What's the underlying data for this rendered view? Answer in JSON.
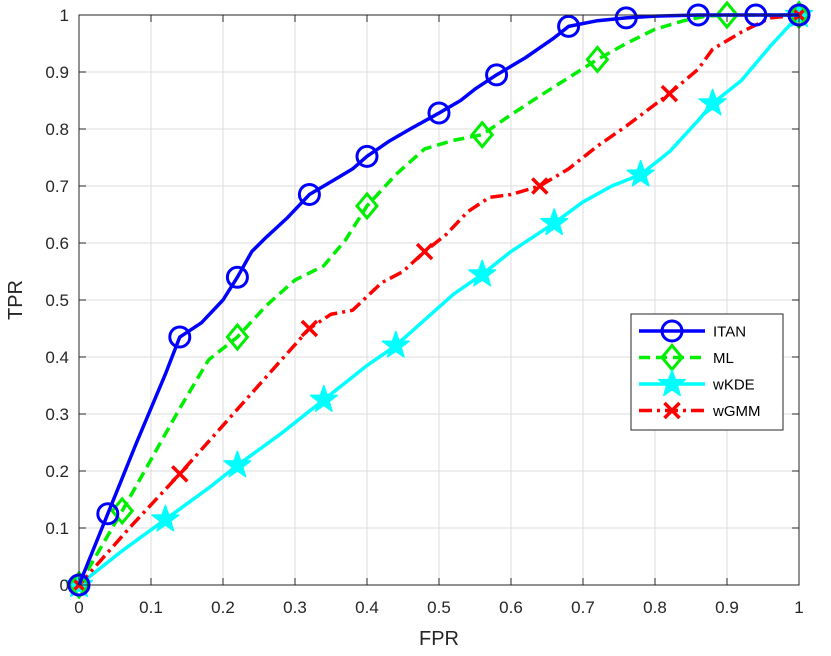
{
  "chart_data": {
    "type": "line",
    "xlabel": "FPR",
    "ylabel": "TPR",
    "xlim": [
      0,
      1
    ],
    "ylim": [
      0,
      1
    ],
    "grid": true,
    "legend_position": "right-middle",
    "x_ticks": [
      "0",
      "0.1",
      "0.2",
      "0.3",
      "0.4",
      "0.5",
      "0.6",
      "0.7",
      "0.8",
      "0.9",
      "1"
    ],
    "y_ticks": [
      "0",
      "0.1",
      "0.2",
      "0.3",
      "0.4",
      "0.5",
      "0.6",
      "0.7",
      "0.8",
      "0.9",
      "1"
    ],
    "series": [
      {
        "name": "ITAN",
        "color": "#0000ff",
        "line_style": "solid",
        "marker": "circle",
        "x": [
          0,
          0.04,
          0.08,
          0.12,
          0.14,
          0.17,
          0.2,
          0.22,
          0.24,
          0.26,
          0.29,
          0.32,
          0.34,
          0.36,
          0.38,
          0.4,
          0.43,
          0.46,
          0.5,
          0.53,
          0.55,
          0.58,
          0.62,
          0.66,
          0.68,
          0.72,
          0.76,
          0.8,
          0.86,
          0.9,
          0.94,
          0.97,
          1
        ],
        "y": [
          0,
          0.125,
          0.25,
          0.37,
          0.435,
          0.46,
          0.5,
          0.54,
          0.585,
          0.61,
          0.645,
          0.685,
          0.7,
          0.715,
          0.73,
          0.752,
          0.778,
          0.8,
          0.828,
          0.85,
          0.87,
          0.895,
          0.925,
          0.96,
          0.98,
          0.99,
          0.995,
          0.998,
          1,
          1,
          1,
          1,
          1
        ],
        "marker_x": [
          0,
          0.04,
          0.14,
          0.22,
          0.32,
          0.4,
          0.5,
          0.58,
          0.68,
          0.76,
          0.86,
          0.94,
          1
        ],
        "marker_y": [
          0,
          0.125,
          0.435,
          0.54,
          0.685,
          0.752,
          0.828,
          0.895,
          0.98,
          0.995,
          1,
          1,
          1
        ]
      },
      {
        "name": "ML",
        "color": "#00ee00",
        "line_style": "dashed",
        "marker": "diamond",
        "x": [
          0,
          0.06,
          0.1,
          0.14,
          0.18,
          0.22,
          0.26,
          0.3,
          0.34,
          0.37,
          0.4,
          0.44,
          0.48,
          0.52,
          0.56,
          0.6,
          0.64,
          0.68,
          0.72,
          0.76,
          0.8,
          0.84,
          0.87,
          0.9,
          0.94,
          1
        ],
        "y": [
          0,
          0.13,
          0.22,
          0.31,
          0.395,
          0.435,
          0.49,
          0.535,
          0.56,
          0.605,
          0.665,
          0.72,
          0.765,
          0.78,
          0.79,
          0.825,
          0.858,
          0.89,
          0.922,
          0.95,
          0.975,
          0.99,
          0.998,
          1,
          1,
          1
        ],
        "marker_x": [
          0,
          0.06,
          0.22,
          0.4,
          0.56,
          0.72,
          0.9,
          1
        ],
        "marker_y": [
          0,
          0.13,
          0.435,
          0.665,
          0.79,
          0.922,
          1,
          1
        ]
      },
      {
        "name": "wKDE",
        "color": "#00ffff",
        "line_style": "solid",
        "marker": "pentagram",
        "x": [
          0,
          0.06,
          0.12,
          0.18,
          0.22,
          0.28,
          0.34,
          0.4,
          0.44,
          0.48,
          0.52,
          0.56,
          0.6,
          0.66,
          0.7,
          0.74,
          0.78,
          0.82,
          0.86,
          0.88,
          0.92,
          0.96,
          1
        ],
        "y": [
          0,
          0.06,
          0.115,
          0.17,
          0.21,
          0.265,
          0.325,
          0.385,
          0.42,
          0.465,
          0.51,
          0.545,
          0.585,
          0.635,
          0.672,
          0.7,
          0.72,
          0.76,
          0.815,
          0.845,
          0.885,
          0.945,
          1
        ],
        "marker_x": [
          0,
          0.12,
          0.22,
          0.34,
          0.44,
          0.56,
          0.66,
          0.78,
          0.88,
          1
        ],
        "marker_y": [
          0,
          0.115,
          0.21,
          0.325,
          0.42,
          0.545,
          0.635,
          0.72,
          0.845,
          1
        ]
      },
      {
        "name": "wGMM",
        "color": "#ff0000",
        "line_style": "dashdot",
        "marker": "x",
        "x": [
          0,
          0.07,
          0.14,
          0.2,
          0.26,
          0.32,
          0.35,
          0.38,
          0.42,
          0.45,
          0.48,
          0.51,
          0.54,
          0.57,
          0.6,
          0.64,
          0.68,
          0.72,
          0.76,
          0.82,
          0.86,
          0.88,
          0.92,
          0.96,
          1
        ],
        "y": [
          0,
          0.1,
          0.195,
          0.28,
          0.365,
          0.45,
          0.475,
          0.482,
          0.53,
          0.55,
          0.585,
          0.615,
          0.655,
          0.68,
          0.685,
          0.7,
          0.73,
          0.77,
          0.805,
          0.862,
          0.905,
          0.94,
          0.97,
          0.995,
          1
        ],
        "marker_x": [
          0,
          0.14,
          0.32,
          0.48,
          0.64,
          0.82,
          1
        ],
        "marker_y": [
          0,
          0.195,
          0.45,
          0.585,
          0.7,
          0.862,
          1
        ]
      }
    ]
  }
}
